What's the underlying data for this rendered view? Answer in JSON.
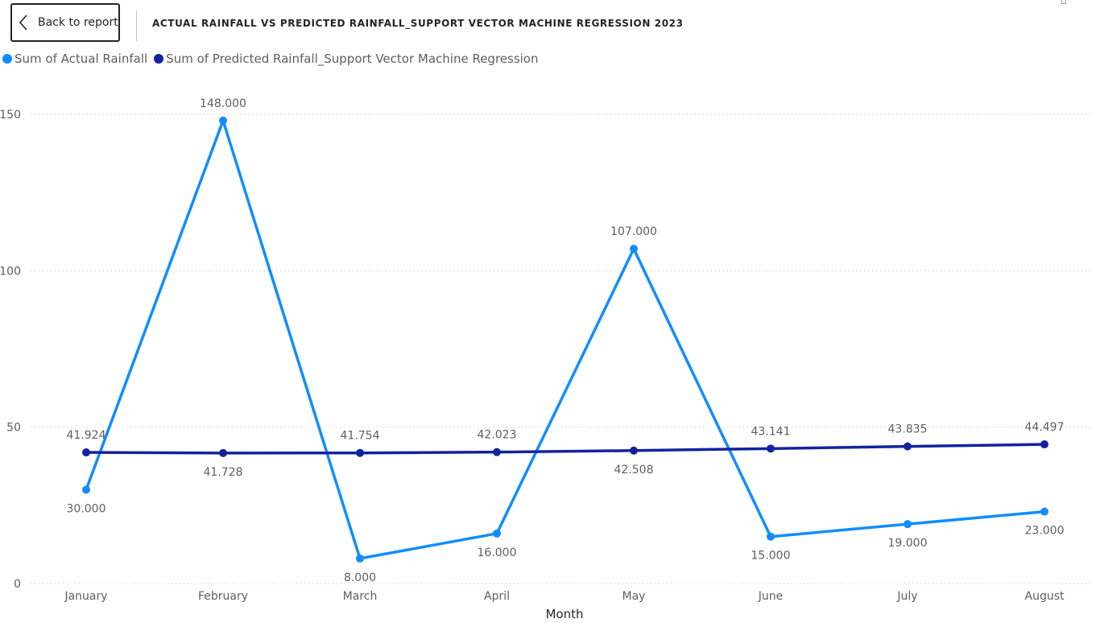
{
  "header": {
    "back_label": "Back to report",
    "title": "ACTUAL RAINFALL VS PREDICTED RAINFALL_SUPPORT VECTOR MACHINE REGRESSION 2023"
  },
  "chart_data": {
    "type": "line",
    "title": "ACTUAL RAINFALL VS PREDICTED RAINFALL_SUPPORT VECTOR MACHINE REGRESSION 2023",
    "xlabel": "Month",
    "ylabel": "",
    "ylim": [
      0,
      150
    ],
    "yticks": [
      0,
      50,
      100,
      150
    ],
    "grid": true,
    "legend_position": "top-left",
    "categories": [
      "January",
      "February",
      "March",
      "April",
      "May",
      "June",
      "July",
      "August"
    ],
    "series": [
      {
        "name": "Sum of Actual Rainfall",
        "color": "#118DFF",
        "values": [
          30,
          148,
          8,
          16,
          107,
          15,
          19,
          23
        ],
        "labels": [
          "30.000",
          "148.000",
          "8.000",
          "16.000",
          "107.000",
          "15.000",
          "19.000",
          "23.000"
        ]
      },
      {
        "name": "Sum of Predicted Rainfall_Support Vector Machine Regression",
        "color": "#12239E",
        "values": [
          41.924,
          41.728,
          41.754,
          42.023,
          42.508,
          43.141,
          43.835,
          44.497
        ],
        "labels": [
          "41.924",
          "41.728",
          "41.754",
          "42.023",
          "42.508",
          "43.141",
          "43.835",
          "44.497"
        ]
      }
    ]
  }
}
